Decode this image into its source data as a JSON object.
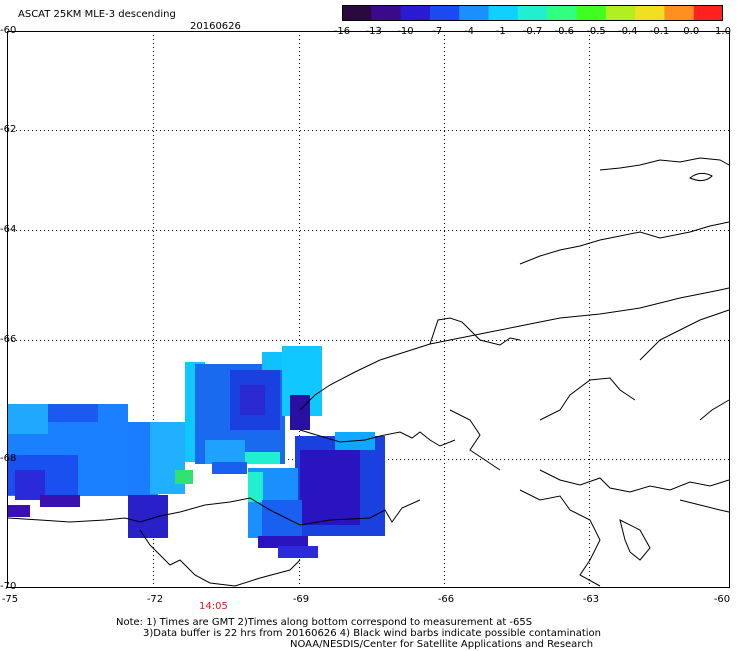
{
  "header": {
    "title": "ASCAT 25KM MLE-3 descending",
    "date": "20160626"
  },
  "colorbar": {
    "labels": [
      "-16",
      "-13",
      "-10",
      "-7",
      "-4",
      "-1",
      "-0.7",
      "-0.6",
      "-0.5",
      "-0.4",
      "-0.1",
      "0.0",
      "1.0"
    ],
    "colors": [
      "#2a0a3e",
      "#3a0a8a",
      "#2a1ad0",
      "#1a4af0",
      "#1a90ff",
      "#10d0ff",
      "#20f0d0",
      "#30ff80",
      "#40ff20",
      "#b0f020",
      "#f0e020",
      "#ff9020",
      "#ff2020"
    ]
  },
  "axes": {
    "lat_labels": [
      "-60",
      "-62",
      "-64",
      "-66",
      "-68",
      "-70"
    ],
    "lon_labels": [
      "-75",
      "-72",
      "-69",
      "-66",
      "-63",
      "-60"
    ]
  },
  "time_label": "14:05",
  "notes": {
    "line1": "Note: 1) Times are GMT 2)Times along bottom correspond to measurement at -65S",
    "line2": "3)Data buffer is 22 hrs from 20160626 4) Black wind barbs indicate possible contamination",
    "line3": "NOAA/NESDIS/Center for Satellite Applications and Research"
  }
}
